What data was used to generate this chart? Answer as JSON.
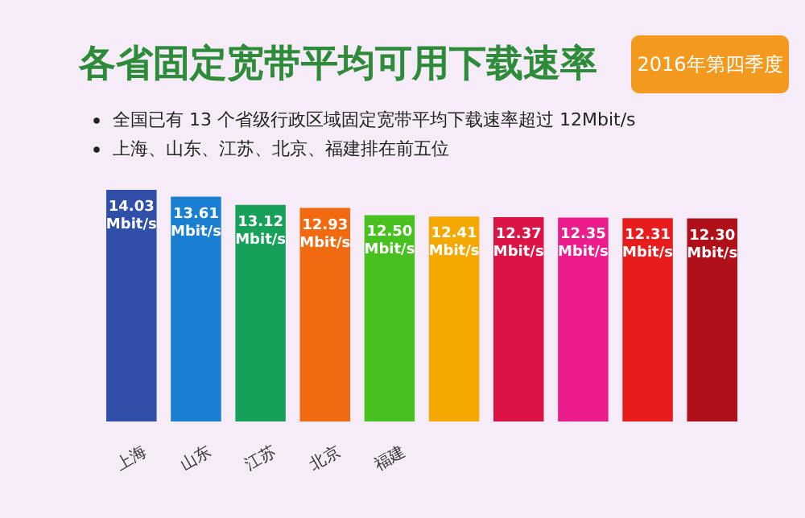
{
  "chart_data": {
    "type": "bar",
    "title": "各省固定宽带平均可用下载速率",
    "subtitle": "2016年第四季度",
    "annotations": [
      "全国已有 13 个省级行政区域固定宽带平均下载速率超过 12Mbit/s",
      "上海、山东、江苏、北京、福建排在前五位"
    ],
    "categories": [
      "上海",
      "山东",
      "江苏",
      "北京",
      "福建",
      null,
      null,
      null,
      null,
      null
    ],
    "values": [
      14.03,
      13.61,
      13.12,
      12.93,
      12.5,
      12.41,
      12.37,
      12.35,
      12.31,
      12.3
    ],
    "value_labels": [
      "14.03 Mbit/s",
      "13.61 Mbit/s",
      "13.12 Mbit/s",
      "12.93 Mbit/s",
      "12.50 Mbit/s",
      "12.41 Mbit/s",
      "12.37 Mbit/s",
      "12.35 Mbit/s",
      "12.31 Mbit/s",
      "12.30 Mbit/s"
    ],
    "colors": [
      "#2f4fa8",
      "#1a7fd0",
      "#16a05a",
      "#f26a10",
      "#48c020",
      "#f5a800",
      "#dc1446",
      "#ec1c8c",
      "#e81c1c",
      "#b0101a"
    ]
  }
}
